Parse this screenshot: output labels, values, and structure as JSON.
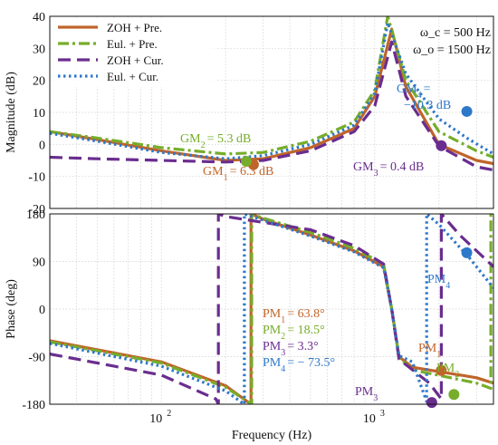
{
  "chart_data": [
    {
      "type": "line",
      "panel": "magnitude",
      "ylabel": "Magnitude (dB)",
      "xlim": [
        30,
        3600
      ],
      "ylim": [
        -20,
        40
      ],
      "yticks": [
        -20,
        -10,
        0,
        10,
        20,
        30,
        40
      ],
      "xscale": "log",
      "grid": true,
      "legend_position": "top-left",
      "params": [
        "ω_c = 500  Hz",
        "ω_o = 1500  Hz"
      ],
      "series": [
        {
          "name": "ZOH + Pre.",
          "color": "#c0642a",
          "dash": "solid",
          "points": [
            [
              30,
              4
            ],
            [
              50,
              1.5
            ],
            [
              100,
              -2
            ],
            [
              200,
              -5
            ],
            [
              300,
              -4.5
            ],
            [
              500,
              -1
            ],
            [
              800,
              5
            ],
            [
              1000,
              15
            ],
            [
              1200,
              36
            ],
            [
              1400,
              18
            ],
            [
              2000,
              0
            ],
            [
              3000,
              -5
            ],
            [
              3600,
              -6
            ]
          ]
        },
        {
          "name": "Eul. + Pre.",
          "color": "#76ad2a",
          "dash": "dashdot",
          "points": [
            [
              30,
              4
            ],
            [
              50,
              2
            ],
            [
              100,
              -1
            ],
            [
              200,
              -3
            ],
            [
              300,
              -2.5
            ],
            [
              500,
              1
            ],
            [
              800,
              7
            ],
            [
              1000,
              17
            ],
            [
              1150,
              40
            ],
            [
              1400,
              20
            ],
            [
              2000,
              4
            ],
            [
              3000,
              -2
            ],
            [
              3600,
              -4
            ]
          ]
        },
        {
          "name": "ZOH + Cur.",
          "color": "#6a2d8f",
          "dash": "dash",
          "points": [
            [
              30,
              -4
            ],
            [
              50,
              -4.5
            ],
            [
              100,
              -5
            ],
            [
              200,
              -5.5
            ],
            [
              300,
              -5
            ],
            [
              500,
              -2
            ],
            [
              800,
              4
            ],
            [
              1000,
              12
            ],
            [
              1200,
              32
            ],
            [
              1400,
              15
            ],
            [
              2000,
              -0.5
            ],
            [
              3000,
              -7
            ],
            [
              3600,
              -8
            ]
          ]
        },
        {
          "name": "Eul. + Cur.",
          "color": "#2e78c9",
          "dash": "dot",
          "points": [
            [
              30,
              3.5
            ],
            [
              50,
              1
            ],
            [
              100,
              -2.5
            ],
            [
              200,
              -4.5
            ],
            [
              300,
              -3.5
            ],
            [
              500,
              0
            ],
            [
              800,
              6
            ],
            [
              1000,
              16
            ],
            [
              1150,
              38
            ],
            [
              1400,
              22
            ],
            [
              2000,
              8
            ],
            [
              2700,
              2
            ],
            [
              3600,
              -3
            ]
          ]
        }
      ],
      "markers": [
        {
          "label": "GM",
          "sub": "1",
          "value": "= 6.3 dB",
          "color": "#c0642a",
          "x": 270,
          "y": -6.3
        },
        {
          "label": "GM",
          "sub": "2",
          "value": "= 5.3 dB",
          "color": "#76ad2a",
          "x": 250,
          "y": -5.3
        },
        {
          "label": "GM",
          "sub": "3",
          "value": "= 0.4 dB",
          "color": "#6a2d8f",
          "x": 2050,
          "y": -0.4
        },
        {
          "label": "GM",
          "sub": "4",
          "value": "−10.3 dB",
          "value_prefix": "=",
          "color": "#2e78c9",
          "x": 2700,
          "y": 10.3
        }
      ]
    },
    {
      "type": "line",
      "panel": "phase",
      "xlabel": "Frequency  (Hz)",
      "ylabel": "Phase  (deg)",
      "xlim": [
        30,
        3600
      ],
      "ylim": [
        -180,
        180
      ],
      "yticks": [
        -180,
        -90,
        0,
        90,
        180
      ],
      "xticks": [
        {
          "value": 100,
          "base": "10",
          "exp": "2"
        },
        {
          "value": 1000,
          "base": "10",
          "exp": "3"
        }
      ],
      "xscale": "log",
      "grid": true,
      "series": [
        {
          "name": "ZOH + Pre.",
          "color": "#c0642a",
          "dash": "solid",
          "points": [
            [
              30,
              -60
            ],
            [
              100,
              -100
            ],
            [
              200,
              -145
            ],
            [
              263,
              -180
            ],
            [
              263,
              180
            ],
            [
              300,
              170
            ],
            [
              500,
              140
            ],
            [
              800,
              110
            ],
            [
              1100,
              80
            ],
            [
              1200,
              0
            ],
            [
              1300,
              -90
            ],
            [
              1500,
              -110
            ],
            [
              3000,
              -130
            ],
            [
              3600,
              -140
            ]
          ]
        },
        {
          "name": "Eul. + Pre.",
          "color": "#76ad2a",
          "dash": "dashdot",
          "points": [
            [
              30,
              -62
            ],
            [
              100,
              -102
            ],
            [
              200,
              -148
            ],
            [
              265,
              -180
            ],
            [
              265,
              180
            ],
            [
              300,
              172
            ],
            [
              500,
              145
            ],
            [
              800,
              115
            ],
            [
              1100,
              85
            ],
            [
              1200,
              0
            ],
            [
              1300,
              -92
            ],
            [
              1500,
              -115
            ],
            [
              3000,
              -140
            ],
            [
              3500,
              -150
            ],
            [
              3500,
              180
            ],
            [
              3600,
              180
            ]
          ]
        },
        {
          "name": "ZOH + Cur.",
          "color": "#6a2d8f",
          "dash": "dash",
          "points": [
            [
              30,
              -85
            ],
            [
              100,
              -125
            ],
            [
              180,
              -170
            ],
            [
              185,
              -180
            ],
            [
              185,
              180
            ],
            [
              200,
              175
            ],
            [
              500,
              150
            ],
            [
              800,
              120
            ],
            [
              1100,
              85
            ],
            [
              1200,
              0
            ],
            [
              1300,
              -95
            ],
            [
              1800,
              -140
            ],
            [
              2050,
              -170
            ],
            [
              2050,
              180
            ],
            [
              2500,
              140
            ],
            [
              3600,
              80
            ]
          ]
        },
        {
          "name": "Eul. + Cur.",
          "color": "#2e78c9",
          "dash": "dot",
          "points": [
            [
              30,
              -65
            ],
            [
              100,
              -108
            ],
            [
              200,
              -155
            ],
            [
              245,
              -180
            ],
            [
              245,
              180
            ],
            [
              300,
              168
            ],
            [
              500,
              138
            ],
            [
              800,
              108
            ],
            [
              1100,
              78
            ],
            [
              1200,
              0
            ],
            [
              1300,
              -88
            ],
            [
              1500,
              -100
            ],
            [
              1750,
              -175
            ],
            [
              1750,
              180
            ],
            [
              2000,
              160
            ],
            [
              2800,
              95
            ],
            [
              3600,
              40
            ]
          ]
        }
      ],
      "markers": [
        {
          "label": "PM",
          "sub": "1",
          "value": "= 63.8°",
          "color": "#c0642a",
          "x": 2050,
          "y": -116.2
        },
        {
          "label": "PM",
          "sub": "2",
          "value": "= 18.5°",
          "color": "#76ad2a",
          "x": 2350,
          "y": -161.5
        },
        {
          "label": "PM",
          "sub": "3",
          "value": "= 3.3°",
          "color": "#6a2d8f",
          "x": 1850,
          "y": -176.7
        },
        {
          "label": "PM",
          "sub": "4",
          "value": "= − 73.5°",
          "color": "#2e78c9",
          "x": 2700,
          "y": 106.5
        }
      ]
    }
  ]
}
